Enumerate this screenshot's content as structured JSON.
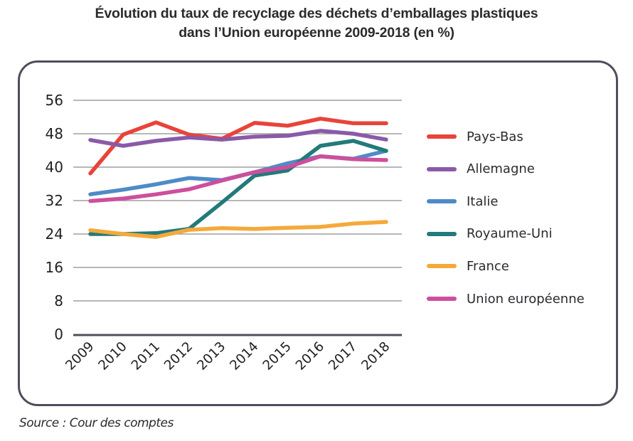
{
  "header": {
    "title_line1": "Évolution du taux de recyclage des déchets d’emballages plastiques",
    "title_line2": "dans l’Union européenne 2009-2018 (en %)"
  },
  "footer": {
    "source": "Source : Cour des comptes"
  },
  "chart_data": {
    "type": "line",
    "title": "Évolution du taux de recyclage des déchets d’emballages plastiques dans l’Union européenne 2009-2018 (en %)",
    "xlabel": "",
    "ylabel": "",
    "x": [
      "2009",
      "2010",
      "2011",
      "2012",
      "2013",
      "2014",
      "2015",
      "2016",
      "2017",
      "2018"
    ],
    "ylim": [
      0,
      56
    ],
    "yticks": [
      "0",
      "8",
      "16",
      "24",
      "32",
      "40",
      "48",
      "56"
    ],
    "grid": true,
    "legend_position": "right",
    "series": [
      {
        "name": "Pays-Bas",
        "color": "#e8443a",
        "values": [
          38.5,
          47.8,
          50.7,
          47.8,
          46.8,
          50.6,
          49.9,
          51.6,
          50.5,
          50.5
        ]
      },
      {
        "name": "Allemagne",
        "color": "#8a5aa8",
        "values": [
          46.5,
          45.1,
          46.3,
          47.1,
          46.6,
          47.3,
          47.5,
          48.7,
          48.0,
          46.6
        ]
      },
      {
        "name": "Italie",
        "color": "#4e8bc7",
        "values": [
          33.5,
          34.6,
          35.9,
          37.4,
          36.9,
          38.8,
          40.9,
          42.6,
          42.0,
          43.9
        ]
      },
      {
        "name": "Royaume-Uni",
        "color": "#237a7a",
        "values": [
          24.0,
          24.0,
          24.2,
          25.2,
          31.5,
          38.0,
          39.2,
          45.1,
          46.3,
          43.9
        ]
      },
      {
        "name": "France",
        "color": "#f5a93b",
        "values": [
          24.9,
          24.0,
          23.3,
          25.0,
          25.4,
          25.2,
          25.5,
          25.7,
          26.5,
          26.9
        ]
      },
      {
        "name": "Union européenne",
        "color": "#cc4f9e",
        "values": [
          31.9,
          32.5,
          33.5,
          34.7,
          36.8,
          38.8,
          40.0,
          42.6,
          41.9,
          41.7
        ]
      }
    ]
  }
}
